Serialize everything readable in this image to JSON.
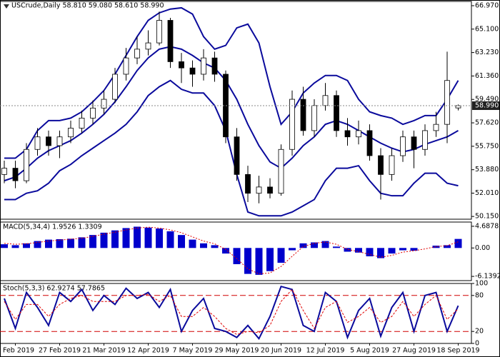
{
  "chart_data": [
    {
      "type": "candlestick",
      "title": "USCrude,Daily 58.810 59.080 58.610 58.990",
      "open": [
        53.5,
        54.0,
        53.0,
        55.5,
        56.5,
        55.8,
        56.5,
        57.2,
        58.0,
        58.8,
        59.5,
        61.5,
        62.8,
        63.5,
        64.0,
        65.8,
        62.5,
        62.0,
        61.5,
        62.8,
        61.5,
        56.5,
        53.5,
        52.0,
        52.5,
        52.0,
        55.5,
        59.5,
        57.0,
        59.0,
        59.8,
        57.0,
        56.5,
        57.0,
        55.0,
        53.5,
        55.0,
        56.5,
        55.5,
        57.0,
        57.5,
        58.81
      ],
      "high": [
        54.6,
        54.6,
        56.0,
        57.2,
        57.0,
        57.0,
        57.8,
        58.6,
        59.4,
        60.2,
        62.0,
        63.6,
        64.5,
        65.0,
        66.5,
        66.0,
        63.2,
        62.6,
        63.5,
        63.3,
        61.8,
        57.2,
        54.2,
        53.4,
        53.2,
        55.9,
        60.2,
        60.5,
        59.5,
        60.8,
        60.2,
        58.0,
        57.8,
        57.5,
        55.6,
        55.6,
        57.0,
        57.0,
        57.5,
        58.5,
        63.3,
        59.08
      ],
      "low": [
        52.8,
        52.4,
        52.8,
        55.0,
        55.0,
        54.8,
        56.0,
        56.8,
        57.5,
        58.3,
        59.2,
        61.0,
        62.3,
        63.0,
        63.8,
        62.0,
        60.8,
        60.5,
        61.0,
        60.9,
        56.0,
        53.0,
        51.3,
        51.2,
        51.6,
        51.8,
        55.0,
        56.6,
        56.5,
        58.6,
        56.5,
        55.8,
        55.9,
        54.6,
        51.5,
        53.0,
        54.5,
        54.0,
        55.0,
        56.5,
        56.0,
        58.61
      ],
      "close": [
        54.0,
        53.0,
        55.5,
        56.5,
        55.8,
        56.5,
        57.2,
        58.0,
        58.8,
        59.5,
        61.5,
        62.8,
        63.5,
        64.0,
        65.8,
        62.5,
        62.0,
        61.5,
        62.8,
        61.5,
        56.5,
        53.5,
        52.0,
        52.5,
        52.0,
        55.5,
        59.5,
        57.0,
        59.0,
        59.8,
        57.0,
        56.5,
        57.0,
        55.0,
        53.5,
        55.0,
        56.5,
        55.5,
        57.0,
        57.5,
        61.0,
        58.99
      ],
      "up_color": "#ffffff",
      "down_color": "#000000",
      "bands": [
        {
          "color": "#0a0a9c",
          "values": [
            54.8,
            54.8,
            55.5,
            57.0,
            57.8,
            57.8,
            58.0,
            58.5,
            59.3,
            60.2,
            61.5,
            63.0,
            64.5,
            65.8,
            66.4,
            66.7,
            66.8,
            66.3,
            64.5,
            63.5,
            63.8,
            65.2,
            65.5,
            64.0,
            60.5,
            57.5,
            58.5,
            60.0,
            60.8,
            61.4,
            61.4,
            61.0,
            59.5,
            58.5,
            58.2,
            58.0,
            57.5,
            57.8,
            58.2,
            58.2,
            59.5,
            61.0
          ]
        },
        {
          "color": "#0a0a9c",
          "values": [
            53.0,
            53.3,
            54.0,
            54.8,
            55.4,
            55.8,
            56.2,
            56.8,
            57.5,
            58.3,
            59.3,
            60.5,
            61.8,
            62.8,
            63.5,
            63.7,
            63.5,
            63.0,
            62.4,
            62.0,
            61.0,
            59.5,
            57.5,
            55.8,
            54.5,
            54.0,
            54.8,
            55.8,
            56.5,
            57.5,
            57.8,
            57.5,
            57.0,
            56.5,
            56.0,
            55.6,
            55.3,
            55.5,
            55.9,
            56.2,
            56.5,
            57.0
          ]
        },
        {
          "color": "#0a0a9c",
          "values": [
            51.5,
            51.5,
            52.0,
            52.2,
            52.8,
            53.8,
            54.3,
            55.0,
            55.6,
            56.2,
            56.8,
            57.5,
            58.5,
            59.8,
            60.5,
            61.0,
            60.3,
            60.0,
            60.0,
            59.0,
            57.0,
            53.5,
            50.5,
            50.2,
            50.2,
            50.2,
            50.5,
            51.0,
            51.5,
            53.0,
            54.0,
            54.0,
            54.2,
            53.0,
            52.0,
            51.8,
            51.8,
            52.8,
            53.6,
            53.6,
            52.8,
            52.6
          ]
        }
      ],
      "last_price": {
        "value": 58.99,
        "label": "58.990"
      },
      "ylim": [
        49.93,
        67.31
      ],
      "yticks": [
        {
          "value": 66.97,
          "label": "66.970"
        },
        {
          "value": 65.1,
          "label": "65.100"
        },
        {
          "value": 63.23,
          "label": "63.230"
        },
        {
          "value": 61.36,
          "label": "61.360"
        },
        {
          "value": 59.49,
          "label": "59.490"
        },
        {
          "value": 57.62,
          "label": "57.620"
        },
        {
          "value": 55.75,
          "label": "55.750"
        },
        {
          "value": 53.88,
          "label": "53.880"
        },
        {
          "value": 52.01,
          "label": "52.010"
        },
        {
          "value": 50.15,
          "label": "50.150"
        }
      ]
    },
    {
      "type": "macd",
      "title": "MACD(5,34,4) 1.9526 1.3309",
      "series": [
        {
          "style": "bar",
          "color": "#0000cc",
          "values": [
            0.8,
            0.6,
            1.0,
            1.5,
            1.8,
            1.9,
            2.0,
            2.3,
            2.8,
            3.3,
            3.8,
            4.3,
            4.6,
            4.4,
            4.2,
            3.6,
            2.8,
            1.8,
            1.0,
            0.6,
            -1.2,
            -3.5,
            -5.6,
            -5.8,
            -5.0,
            -3.2,
            -0.5,
            1.0,
            1.2,
            1.5,
            0.3,
            -0.8,
            -1.0,
            -1.8,
            -2.2,
            -1.2,
            -0.5,
            -0.6,
            0.0,
            0.5,
            0.6,
            1.9526
          ]
        },
        {
          "style": "line",
          "color": "#e00000",
          "values": [
            1.0,
            0.8,
            0.9,
            1.2,
            1.5,
            1.7,
            1.9,
            2.1,
            2.5,
            3.0,
            3.4,
            3.9,
            4.3,
            4.5,
            4.3,
            3.9,
            3.3,
            2.4,
            1.5,
            0.9,
            -0.3,
            -2.3,
            -4.5,
            -5.6,
            -5.4,
            -4.0,
            -1.8,
            0.3,
            1.0,
            1.3,
            0.8,
            -0.3,
            -0.8,
            -1.4,
            -2.0,
            -1.6,
            -0.9,
            -0.6,
            -0.2,
            0.3,
            0.5,
            1.3309
          ]
        }
      ],
      "ylim": [
        -7.05,
        5.6
      ],
      "yticks": [
        4.6878,
        {
          "value": 0,
          "label": "0.00"
        },
        -6.1392
      ]
    },
    {
      "type": "stoch",
      "title": "Stoch(5,3,3) 62.9274 57.7865",
      "categories": [
        null,
        "1 Feb 2019",
        null,
        null,
        null,
        "27 Feb 2019",
        null,
        null,
        null,
        "21 Mar 2019",
        null,
        null,
        null,
        "12 Apr 2019",
        null,
        null,
        null,
        "7 May 2019",
        null,
        null,
        null,
        "29 May 2019",
        null,
        null,
        null,
        "20 Jun 2019",
        null,
        null,
        null,
        "12 Jul 2019",
        null,
        null,
        null,
        "5 Aug 2019",
        null,
        null,
        null,
        "27 Aug 2019",
        null,
        null,
        null,
        "18 Sep 2019"
      ],
      "series": [
        {
          "style": "solid",
          "color": "#0a0a9c",
          "values": [
            75,
            25,
            85,
            60,
            30,
            85,
            70,
            90,
            55,
            80,
            65,
            92,
            75,
            85,
            60,
            90,
            20,
            55,
            75,
            25,
            20,
            10,
            30,
            8,
            45,
            95,
            90,
            30,
            20,
            85,
            70,
            10,
            55,
            75,
            12,
            60,
            85,
            20,
            80,
            85,
            20,
            62.9274
          ]
        },
        {
          "style": "dash",
          "color": "#e00000",
          "values": [
            70,
            40,
            65,
            65,
            45,
            65,
            75,
            80,
            70,
            70,
            70,
            80,
            80,
            82,
            70,
            80,
            45,
            45,
            60,
            45,
            25,
            15,
            20,
            18,
            30,
            70,
            90,
            55,
            25,
            60,
            70,
            35,
            45,
            60,
            35,
            45,
            70,
            45,
            65,
            80,
            40,
            57.7865
          ]
        }
      ],
      "level_color": "#d00000",
      "ylim": [
        0,
        100
      ],
      "yticks": [
        100,
        80,
        20,
        0
      ]
    }
  ]
}
